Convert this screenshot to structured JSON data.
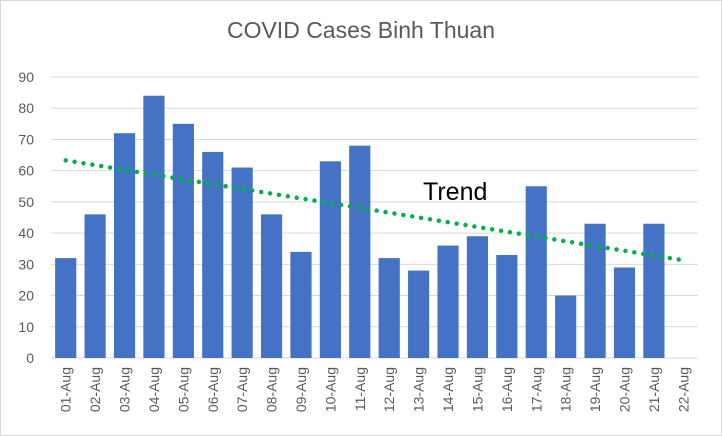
{
  "chart_data": {
    "type": "bar",
    "title": "COVID Cases Binh Thuan",
    "xlabel": "",
    "ylabel": "",
    "ylim": [
      0,
      90
    ],
    "yticks": [
      0,
      10,
      20,
      30,
      40,
      50,
      60,
      70,
      80,
      90
    ],
    "grid": true,
    "legend": "none",
    "categories": [
      "01-Aug",
      "02-Aug",
      "03-Aug",
      "04-Aug",
      "05-Aug",
      "06-Aug",
      "07-Aug",
      "08-Aug",
      "09-Aug",
      "10-Aug",
      "11-Aug",
      "12-Aug",
      "13-Aug",
      "14-Aug",
      "15-Aug",
      "16-Aug",
      "17-Aug",
      "18-Aug",
      "19-Aug",
      "20-Aug",
      "21-Aug",
      "22-Aug"
    ],
    "values": [
      32,
      46,
      72,
      84,
      75,
      66,
      61,
      46,
      34,
      63,
      68,
      32,
      28,
      36,
      39,
      33,
      55,
      20,
      43,
      29,
      43,
      null
    ],
    "trendline": {
      "type": "linear",
      "start": 63.3,
      "end": 31.3,
      "color": "#00b050",
      "style": "dotted"
    },
    "annotation": "Trend",
    "bar_color": "#4472c4",
    "grid_color": "#d9d9d9"
  }
}
